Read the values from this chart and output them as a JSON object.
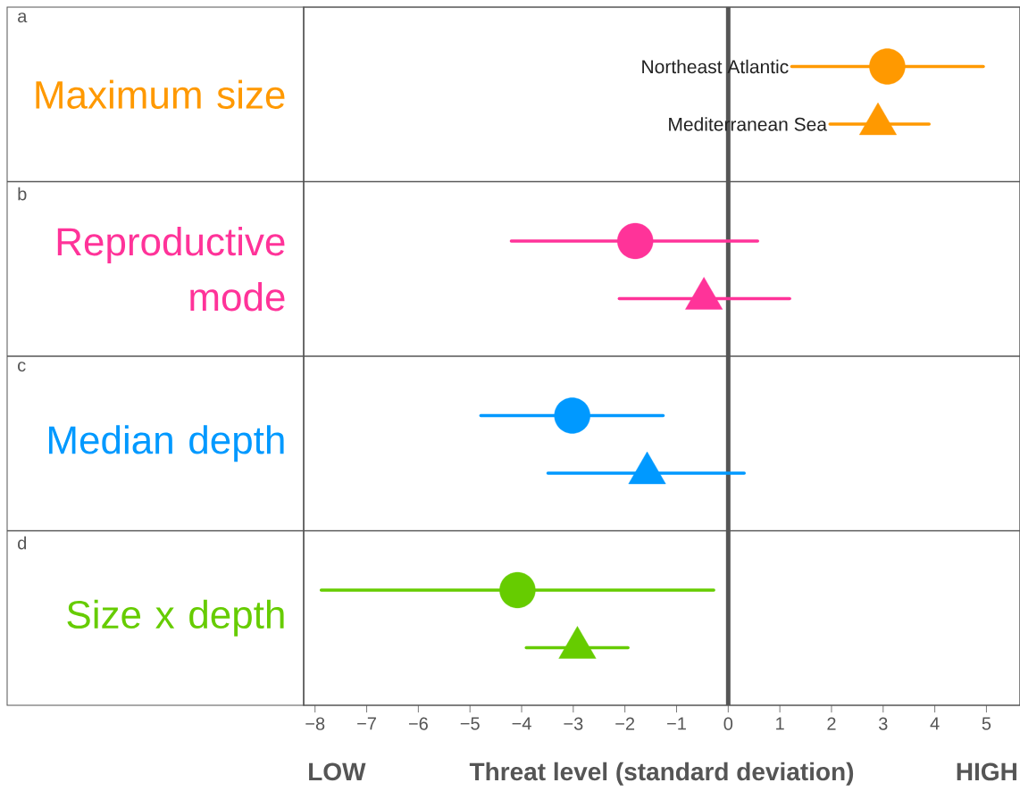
{
  "chart_data": {
    "type": "scatter",
    "orientation": "horizontal",
    "categories": [
      "Maximum size",
      "Reproductive mode",
      "Median depth",
      "Size x depth"
    ],
    "xlabel": "Threat level (standard deviation)",
    "annotations": [
      "a",
      "b",
      "c",
      "d",
      "LOW",
      "HIGH"
    ],
    "xlim": [
      -8.22,
      5.65
    ],
    "xticks": [
      {
        "value": -8,
        "label": "−8"
      },
      {
        "value": -7,
        "label": "−7"
      },
      {
        "value": -6,
        "label": "−6"
      },
      {
        "value": -5,
        "label": "−5"
      },
      {
        "value": -4,
        "label": "−4"
      },
      {
        "value": -3,
        "label": "−3"
      },
      {
        "value": -2,
        "label": "−2"
      },
      {
        "value": -1,
        "label": "−1"
      },
      0,
      1,
      2,
      3,
      4,
      5
    ],
    "ref_lines": [
      {
        "axis": "x",
        "value": 0,
        "color": "#555555"
      }
    ],
    "series": [
      {
        "name": "Northeast Atlantic",
        "marker": "circle",
        "colors": [
          "#ff9900",
          "#ff3399",
          "#0099ff",
          "#66cc00"
        ],
        "values": [
          3.08,
          -1.8,
          -3.02,
          -4.08
        ],
        "errors": [
          [
            1.23,
            4.94
          ],
          [
            -4.2,
            0.57
          ],
          [
            -4.79,
            -1.26
          ],
          [
            -7.88,
            -0.28
          ]
        ]
      },
      {
        "name": "Mediterranean Sea",
        "marker": "triangle",
        "colors": [
          "#ff9900",
          "#ff3399",
          "#0099ff",
          "#66cc00"
        ],
        "values": [
          2.9,
          -0.47,
          -1.57,
          -2.92
        ],
        "errors": [
          [
            1.97,
            3.89
          ],
          [
            -2.11,
            1.19
          ],
          [
            -3.49,
            0.31
          ],
          [
            -3.91,
            -1.94
          ]
        ]
      }
    ]
  }
}
